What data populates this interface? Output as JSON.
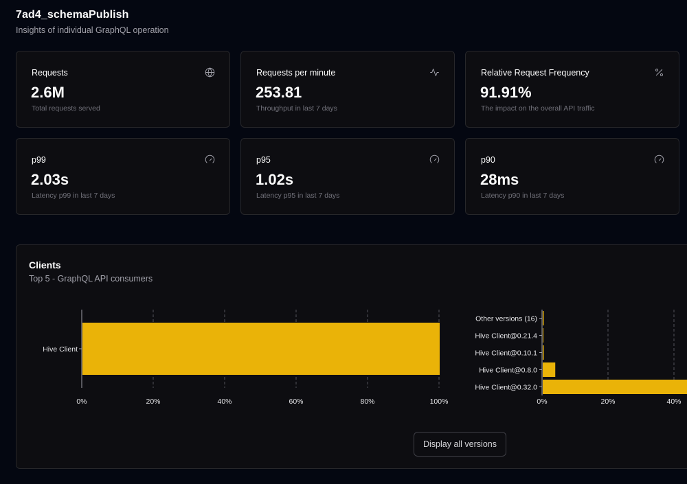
{
  "operation": {
    "title": "7ad4_schemaPublish",
    "subtitle": "Insights of individual GraphQL operation"
  },
  "stats": [
    {
      "title": "Requests",
      "value": "2.6M",
      "desc": "Total requests served",
      "icon": "globe-icon"
    },
    {
      "title": "Requests per minute",
      "value": "253.81",
      "desc": "Throughput in last 7 days",
      "icon": "activity-icon"
    },
    {
      "title": "Relative Request Frequency",
      "value": "91.91%",
      "desc": "The impact on the overall API traffic",
      "icon": "percent-icon"
    },
    {
      "title": "p99",
      "value": "2.03s",
      "desc": "Latency p99 in last 7 days",
      "icon": "gauge-icon"
    },
    {
      "title": "p95",
      "value": "1.02s",
      "desc": "Latency p95 in last 7 days",
      "icon": "gauge-icon"
    },
    {
      "title": "p90",
      "value": "28ms",
      "desc": "Latency p90 in last 7 days",
      "icon": "gauge-icon"
    }
  ],
  "clients": {
    "title": "Clients",
    "subtitle": "Top 5 - GraphQL API consumers",
    "display_all_label": "Display all versions"
  },
  "chart_data": [
    {
      "type": "bar",
      "orientation": "horizontal",
      "categories": [
        "Hive Client"
      ],
      "values": [
        100
      ],
      "xlim": [
        0,
        100
      ],
      "xticks": [
        "0%",
        "20%",
        "40%",
        "60%",
        "80%",
        "100%"
      ],
      "grid": true,
      "color": "#eab308"
    },
    {
      "type": "bar",
      "orientation": "horizontal",
      "categories": [
        "Other versions (16)",
        "Hive Client@0.21.4",
        "Hive Client@0.10.1",
        "Hive Client@0.8.0",
        "Hive Client@0.32.0"
      ],
      "values": [
        0.3,
        0.2,
        0.3,
        3.8,
        92
      ],
      "xlim": [
        0,
        100
      ],
      "xticks": [
        "0%",
        "20%",
        "40%"
      ],
      "grid": true,
      "color": "#eab308"
    }
  ]
}
